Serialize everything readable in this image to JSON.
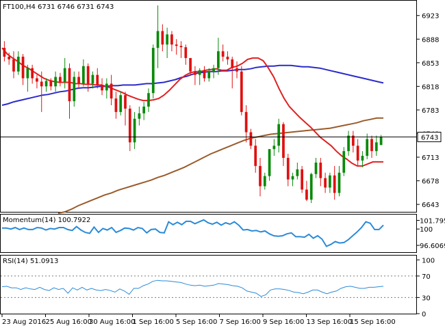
{
  "header": {
    "main": "FT100,H4  6731 6746 6731 6743",
    "momentum": "Momentum(14) 100.7922",
    "rsi": "RSI(14) 51.0913"
  },
  "colors": {
    "bull": "#0a8a0a",
    "bear": "#e01010",
    "ma_red": "#e02020",
    "ma_blue": "#2a2acc",
    "ma_brown": "#9a5a2a",
    "indicator": "#2a8ad8",
    "grid": "#000000"
  },
  "chart_data": [
    {
      "type": "candlestick",
      "name": "main",
      "ylim": [
        6632,
        6945
      ],
      "y_ticks": [
        6923,
        6888,
        6853,
        6818,
        6783,
        6748,
        6713,
        6678,
        6643
      ],
      "current_price": 6743,
      "candles": [
        [
          6875,
          6885,
          6855,
          6862
        ],
        [
          6862,
          6868,
          6850,
          6858
        ],
        [
          6858,
          6870,
          6830,
          6840
        ],
        [
          6840,
          6870,
          6835,
          6862
        ],
        [
          6862,
          6866,
          6820,
          6830
        ],
        [
          6830,
          6850,
          6810,
          6845
        ],
        [
          6845,
          6850,
          6822,
          6830
        ],
        [
          6830,
          6835,
          6815,
          6825
        ],
        [
          6825,
          6840,
          6780,
          6818
        ],
        [
          6818,
          6830,
          6810,
          6826
        ],
        [
          6826,
          6830,
          6812,
          6818
        ],
        [
          6818,
          6840,
          6810,
          6832
        ],
        [
          6832,
          6838,
          6818,
          6825
        ],
        [
          6825,
          6860,
          6815,
          6845
        ],
        [
          6845,
          6852,
          6770,
          6796
        ],
        [
          6796,
          6840,
          6788,
          6832
        ],
        [
          6832,
          6840,
          6815,
          6822
        ],
        [
          6822,
          6858,
          6818,
          6848
        ],
        [
          6848,
          6852,
          6810,
          6822
        ],
        [
          6822,
          6840,
          6815,
          6835
        ],
        [
          6835,
          6845,
          6815,
          6820
        ],
        [
          6820,
          6830,
          6805,
          6812
        ],
        [
          6812,
          6830,
          6800,
          6822
        ],
        [
          6822,
          6835,
          6790,
          6800
        ],
        [
          6800,
          6810,
          6770,
          6780
        ],
        [
          6780,
          6810,
          6775,
          6805
        ],
        [
          6805,
          6810,
          6760,
          6785
        ],
        [
          6785,
          6790,
          6722,
          6735
        ],
        [
          6735,
          6780,
          6725,
          6770
        ],
        [
          6770,
          6788,
          6760,
          6778
        ],
        [
          6778,
          6795,
          6768,
          6788
        ],
        [
          6788,
          6815,
          6780,
          6808
        ],
        [
          6808,
          6880,
          6800,
          6875
        ],
        [
          6875,
          6938,
          6845,
          6900
        ],
        [
          6900,
          6910,
          6870,
          6880
        ],
        [
          6880,
          6905,
          6860,
          6895
        ],
        [
          6895,
          6900,
          6870,
          6880
        ],
        [
          6880,
          6888,
          6865,
          6878
        ],
        [
          6878,
          6885,
          6860,
          6876
        ],
        [
          6876,
          6880,
          6850,
          6860
        ],
        [
          6860,
          6860,
          6835,
          6840
        ],
        [
          6840,
          6848,
          6820,
          6835
        ],
        [
          6835,
          6845,
          6820,
          6842
        ],
        [
          6842,
          6848,
          6825,
          6830
        ],
        [
          6830,
          6845,
          6825,
          6840
        ],
        [
          6840,
          6850,
          6830,
          6845
        ],
        [
          6845,
          6890,
          6835,
          6870
        ],
        [
          6870,
          6880,
          6855,
          6862
        ],
        [
          6862,
          6870,
          6850,
          6858
        ],
        [
          6858,
          6862,
          6815,
          6845
        ],
        [
          6845,
          6855,
          6830,
          6840
        ],
        [
          6840,
          6848,
          6775,
          6780
        ],
        [
          6780,
          6790,
          6735,
          6750
        ],
        [
          6750,
          6755,
          6725,
          6730
        ],
        [
          6730,
          6740,
          6690,
          6700
        ],
        [
          6700,
          6712,
          6655,
          6670
        ],
        [
          6670,
          6690,
          6665,
          6685
        ],
        [
          6685,
          6725,
          6678,
          6725
        ],
        [
          6725,
          6740,
          6715,
          6730
        ],
        [
          6730,
          6770,
          6720,
          6762
        ],
        [
          6762,
          6765,
          6700,
          6712
        ],
        [
          6712,
          6718,
          6670,
          6680
        ],
        [
          6680,
          6690,
          6670,
          6685
        ],
        [
          6685,
          6705,
          6680,
          6695
        ],
        [
          6695,
          6700,
          6660,
          6665
        ],
        [
          6665,
          6678,
          6648,
          6650
        ],
        [
          6650,
          6690,
          6645,
          6688
        ],
        [
          6688,
          6712,
          6682,
          6705
        ],
        [
          6705,
          6712,
          6670,
          6682
        ],
        [
          6682,
          6690,
          6660,
          6668
        ],
        [
          6668,
          6690,
          6660,
          6686
        ],
        [
          6686,
          6700,
          6650,
          6660
        ],
        [
          6660,
          6700,
          6655,
          6690
        ],
        [
          6690,
          6728,
          6685,
          6722
        ],
        [
          6722,
          6752,
          6715,
          6745
        ],
        [
          6745,
          6752,
          6720,
          6730
        ],
        [
          6730,
          6740,
          6700,
          6708
        ],
        [
          6708,
          6722,
          6698,
          6715
        ],
        [
          6715,
          6748,
          6710,
          6740
        ],
        [
          6740,
          6745,
          6712,
          6722
        ],
        [
          6722,
          6745,
          6715,
          6735
        ],
        [
          6731,
          6746,
          6731,
          6743
        ]
      ],
      "ma_red": [
        6875,
        6866,
        6860,
        6855,
        6849,
        6845,
        6840,
        6835,
        6830,
        6827,
        6825,
        6824,
        6824,
        6824,
        6822,
        6822,
        6821,
        6821,
        6820,
        6820,
        6818,
        6815,
        6812,
        6809,
        6805,
        6802,
        6799,
        6797,
        6797,
        6798,
        6800,
        6805,
        6812,
        6820,
        6828,
        6834,
        6838,
        6840,
        6840,
        6842,
        6843,
        6844,
        6842,
        6842,
        6846,
        6848,
        6852,
        6858,
        6860,
        6860,
        6856,
        6845,
        6832,
        6815,
        6800,
        6788,
        6780,
        6772,
        6765,
        6758,
        6750,
        6742,
        6736,
        6730,
        6722,
        6715,
        6710,
        6704,
        6700,
        6700,
        6703,
        6706,
        6706,
        6706
      ],
      "ma_blue": [
        6790,
        6792,
        6795,
        6797,
        6799,
        6801,
        6803,
        6805,
        6806,
        6808,
        6810,
        6811,
        6813,
        6815,
        6816,
        6816,
        6817,
        6818,
        6818,
        6819,
        6819,
        6820,
        6820,
        6820,
        6821,
        6822,
        6822,
        6823,
        6824,
        6826,
        6828,
        6831,
        6833,
        6836,
        6838,
        6839,
        6840,
        6840,
        6841,
        6841,
        6842,
        6843,
        6843,
        6844,
        6846,
        6847,
        6848,
        6848,
        6849,
        6849,
        6849,
        6848,
        6847,
        6847,
        6846,
        6845,
        6843,
        6841,
        6839,
        6837,
        6835,
        6833,
        6831,
        6829,
        6827,
        6825,
        6823
      ],
      "ma_brown": [
        6630,
        6632,
        6636,
        6641,
        6645,
        6649,
        6653,
        6657,
        6660,
        6664,
        6667,
        6670,
        6673,
        6676,
        6679,
        6683,
        6686,
        6690,
        6694,
        6698,
        6703,
        6708,
        6713,
        6718,
        6722,
        6726,
        6730,
        6734,
        6738,
        6741,
        6743,
        6745,
        6747,
        6748,
        6749,
        6750,
        6751,
        6752,
        6753,
        6754,
        6755,
        6756,
        6758,
        6760,
        6762,
        6764,
        6767,
        6769,
        6771,
        6771
      ]
    },
    {
      "type": "line",
      "name": "Momentum(14)",
      "ylim": [
        95.2,
        103
      ],
      "y_ticks": [
        101.7958,
        100,
        96.6069
      ],
      "values": [
        100.2,
        100.2,
        100.0,
        100.3,
        99.9,
        100.2,
        99.9,
        99.9,
        100.3,
        100.2,
        99.8,
        100.1,
        100.0,
        100.3,
        100.3,
        99.9,
        99.7,
        100.5,
        99.8,
        99.3,
        99.1,
        100.4,
        99.3,
        100.1,
        99.8,
        100.3,
        99.3,
        99.7,
        100.2,
        100.1,
        99.8,
        100.3,
        100.1,
        99.2,
        99.9,
        100.0,
        99.3,
        99.2,
        101.5,
        100.9,
        101.4,
        100.9,
        101.6,
        101.6,
        101.1,
        101.5,
        101.9,
        101.3,
        101.0,
        101.4,
        100.8,
        101.3,
        101.0,
        101.5,
        100.8,
        99.8,
        99.9,
        99.6,
        99.7,
        99.4,
        99.6,
        99.0,
        98.6,
        98.5,
        98.6,
        99.0,
        99.2,
        98.4,
        98.4,
        98.3,
        98.9,
        98.1,
        98.6,
        97.9,
        96.4,
        96.8,
        97.4,
        97.1,
        97.2,
        97.8,
        98.6,
        99.4,
        100.3,
        101.5,
        101.2,
        99.9,
        99.9,
        100.8
      ],
      "series_color": "#2a8ad8"
    },
    {
      "type": "line",
      "name": "RSI(14)",
      "ylim": [
        0,
        108
      ],
      "y_ticks": [
        100,
        70,
        30,
        0
      ],
      "values": [
        50,
        51,
        48,
        48,
        45,
        48,
        46,
        45,
        49,
        45,
        43,
        48,
        45,
        47,
        38,
        48,
        44,
        49,
        44,
        47,
        44,
        43,
        45,
        43,
        40,
        46,
        42,
        36,
        47,
        47,
        52,
        55,
        60,
        62,
        61,
        61,
        60,
        59,
        58,
        55,
        53,
        52,
        53,
        51,
        52,
        53,
        56,
        55,
        54,
        52,
        51,
        48,
        42,
        40,
        38,
        32,
        35,
        44,
        46,
        46,
        45,
        43,
        40,
        39,
        37,
        40,
        44,
        44,
        40,
        37,
        40,
        42,
        47,
        50,
        51,
        49,
        47,
        47,
        49,
        49,
        50,
        51
      ]
    }
  ],
  "x_axis": {
    "tick_labels": [
      "23 Aug 2016",
      "25 Aug 16:00",
      "30 Aug 16:00",
      "1 Sep 16:00",
      "5 Sep 16:00",
      "7 Sep 16:00",
      "9 Sep 16:00",
      "13 Sep 16:00",
      "15 Sep 16:00"
    ]
  }
}
